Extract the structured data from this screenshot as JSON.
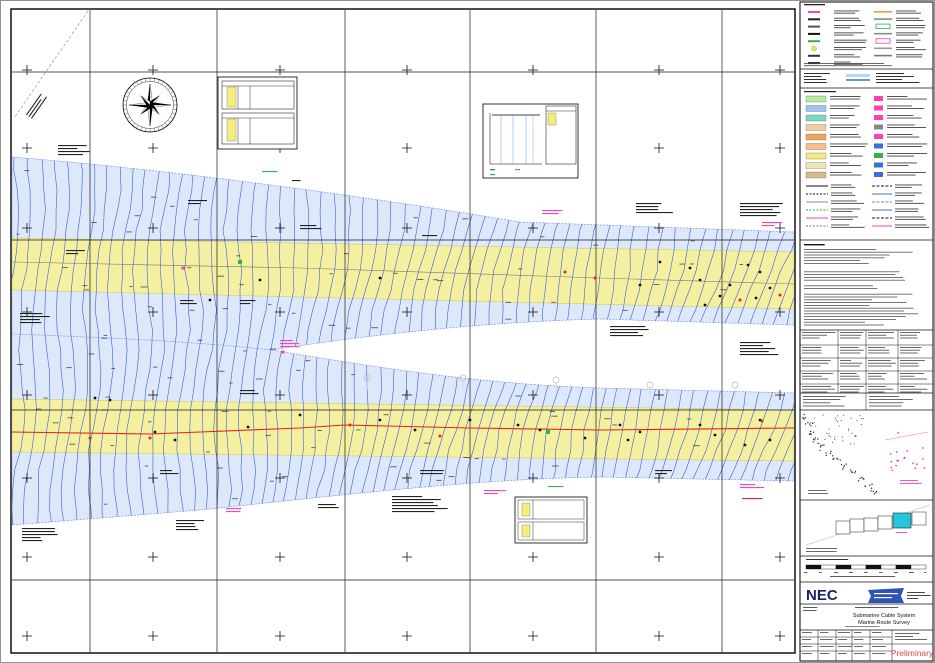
{
  "sheet": {
    "logo_text": "NEC",
    "title_line_1": "Submarine Cable System",
    "title_line_2": "Marine Route Survey",
    "status_stamp": "Preliminary"
  },
  "map": {
    "north_indicator": "compass-rose-icon",
    "second_logo": "ribbon-logo-icon"
  },
  "colors": {
    "route_corridor": "#f4f0a0",
    "survey_swath": "#dde8fb",
    "swath_edge": "#7e9ae6",
    "contour": "#3a5ed8",
    "route_line": "#e4261d",
    "secondary_route": "#7a7a7a",
    "grid": "#1a1a1a",
    "annotation_pink": "#ff3fb4",
    "annotation_green": "#2fb34a",
    "key_plan_highlight": "#22c7da",
    "logo_navy": "#1b2366",
    "logo_blue": "#2d54b8",
    "stamp": "#e8413c"
  },
  "legend": {
    "swatch_colors": [
      "#bde8a0",
      "#9cc3f2",
      "#7fd4c4",
      "#f0d09a",
      "#f2a35c",
      "#f7c08a",
      "#f3e77e",
      "#efe8b6",
      "#d9b98a"
    ]
  }
}
